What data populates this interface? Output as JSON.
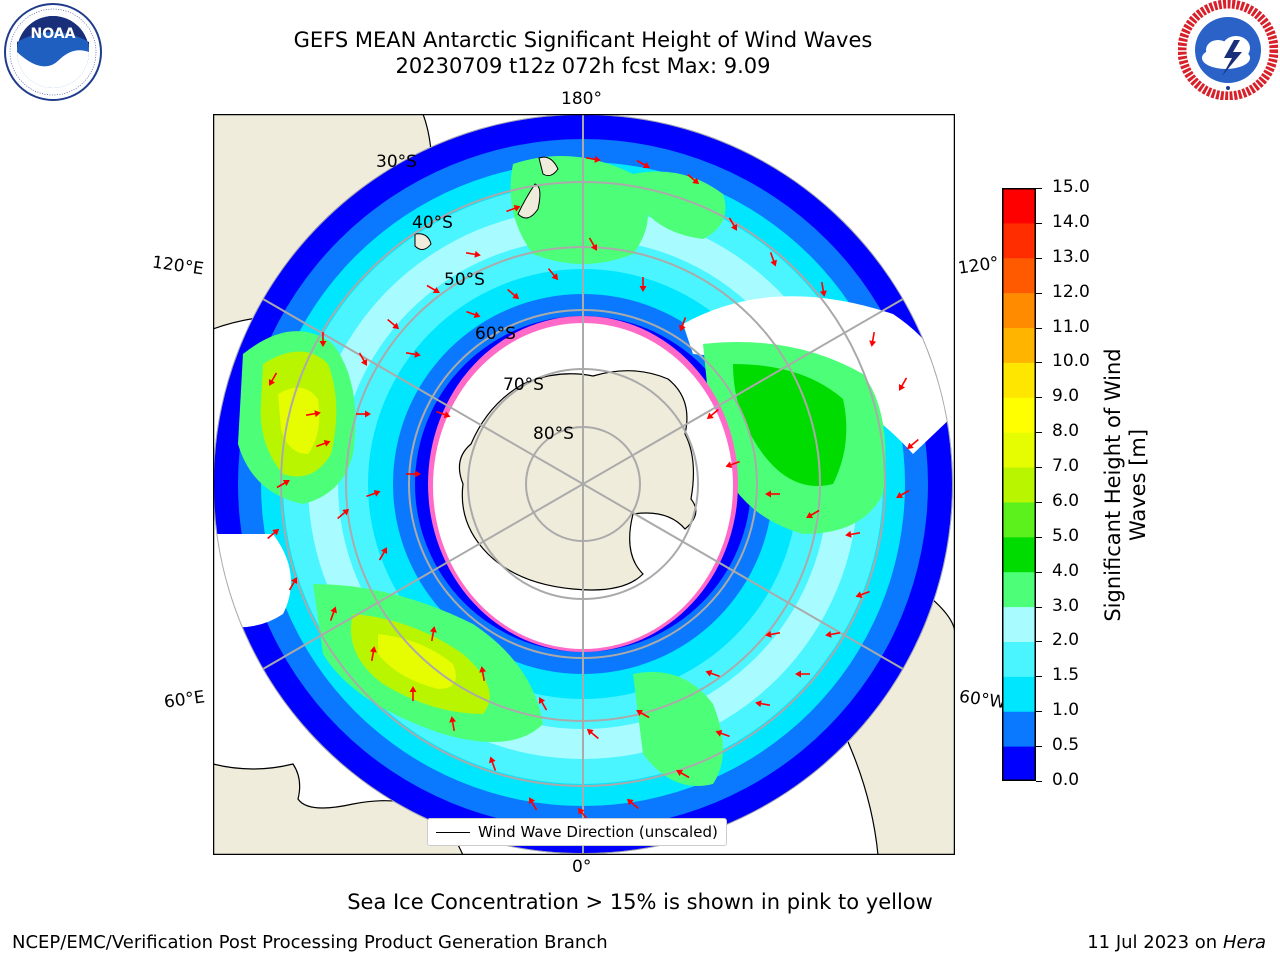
{
  "title_line1": "GEFS MEAN Antarctic Significant Height of Wind Waves",
  "title_line2": "20230709 t12z 072h fcst   Max: 9.09",
  "logos": {
    "noaa": {
      "text": "NOAA",
      "ring_text": "NATIONAL OCEANIC AND ATMOSPHERIC ADMINISTRATION · U.S. DEPARTMENT OF COMMERCE"
    },
    "nws": {
      "ring_text": "NATIONAL WEATHER SERVICE"
    }
  },
  "map": {
    "projection": "south-polar-stereographic",
    "lon_labels": {
      "top": "180°",
      "bottom": "0°",
      "left_upper": "120°E",
      "left_lower": "60°E",
      "right_upper": "120°",
      "right_lower": "60°W"
    },
    "lat_labels": [
      "30°S",
      "40°S",
      "50°S",
      "60°S",
      "70°S",
      "80°S"
    ],
    "land_color": "#efecdc",
    "ice_color": "#ff69c8",
    "arrow_color": "#ff0000"
  },
  "colorbar": {
    "label": "Significant Height of Wind Waves [m]",
    "label_line1": "Significant Height of Wind",
    "label_line2": "Waves [m]",
    "ticks": [
      "15.0",
      "14.0",
      "13.0",
      "12.0",
      "11.0",
      "10.0",
      "9.0",
      "8.0",
      "7.0",
      "6.0",
      "5.0",
      "4.0",
      "3.0",
      "2.0",
      "1.5",
      "1.0",
      "0.5",
      "0.0"
    ],
    "bounds": [
      0.0,
      0.5,
      1.0,
      1.5,
      2.0,
      3.0,
      4.0,
      5.0,
      6.0,
      7.0,
      8.0,
      9.0,
      10.0,
      11.0,
      12.0,
      13.0,
      14.0,
      15.0
    ],
    "colors": [
      "#0000ff",
      "#0a78ff",
      "#00e6ff",
      "#4af5ff",
      "#a8fcff",
      "#4dff78",
      "#00dc00",
      "#5cf01c",
      "#baf500",
      "#e6fc00",
      "#ffff00",
      "#ffe600",
      "#ffb400",
      "#ff8c00",
      "#ff5a00",
      "#ff2d00",
      "#ff0000"
    ]
  },
  "legend": {
    "label": "Wind Wave Direction (unscaled)"
  },
  "caption": "Sea Ice Concentration > 15% is shown in pink to yellow",
  "footer": {
    "left": "NCEP/EMC/Verification Post Processing Product Generation Branch",
    "date": "11 Jul 2023 on ",
    "machine": "Hera"
  }
}
